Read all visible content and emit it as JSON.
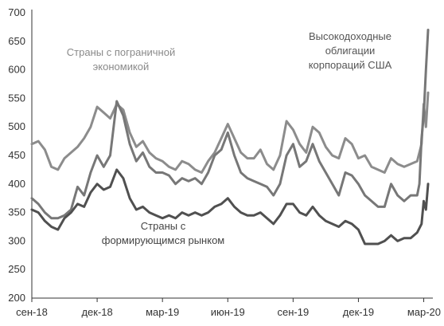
{
  "chart_data": {
    "type": "line",
    "title": "",
    "xlabel": "",
    "ylabel": "",
    "ylim": [
      200,
      700
    ],
    "yticks": [
      200,
      250,
      300,
      350,
      400,
      450,
      500,
      550,
      600,
      650,
      700
    ],
    "xlim": [
      0,
      18.2
    ],
    "xticks": [
      {
        "label": "сен-18",
        "x": 0
      },
      {
        "label": "дек-18",
        "x": 3
      },
      {
        "label": "мар-19",
        "x": 6
      },
      {
        "label": "июн-19",
        "x": 9
      },
      {
        "label": "сен-19",
        "x": 12
      },
      {
        "label": "дек-19",
        "x": 15
      },
      {
        "label": "мар-20",
        "x": 18
      }
    ],
    "grid": false,
    "legend": "none",
    "annotations": [
      {
        "lines": [
          "Страны с пограничной",
          "экономикой"
        ],
        "color": "#8a8a8a",
        "series": 0
      },
      {
        "lines": [
          "Высокодоходные",
          "облигации",
          "корпораций США"
        ],
        "color": "#555555",
        "series": 1
      },
      {
        "lines": [
          "Страны с",
          "формирующимся рынком"
        ],
        "color": "#444444",
        "series": 2
      }
    ],
    "series": [
      {
        "color": "#8c8c8c",
        "x": [
          0,
          0.3,
          0.6,
          0.9,
          1.2,
          1.5,
          1.8,
          2.1,
          2.4,
          2.7,
          3.0,
          3.3,
          3.6,
          3.9,
          4.2,
          4.5,
          4.8,
          5.1,
          5.4,
          5.7,
          6.0,
          6.3,
          6.6,
          6.9,
          7.2,
          7.5,
          7.8,
          8.1,
          8.4,
          8.7,
          9.0,
          9.3,
          9.6,
          9.9,
          10.2,
          10.5,
          10.8,
          11.1,
          11.4,
          11.7,
          12.0,
          12.3,
          12.6,
          12.9,
          13.2,
          13.5,
          13.8,
          14.1,
          14.4,
          14.7,
          15.0,
          15.3,
          15.6,
          15.9,
          16.2,
          16.5,
          16.8,
          17.1,
          17.4,
          17.7,
          17.9,
          18.0,
          18.1,
          18.2
        ],
        "values": [
          470,
          475,
          460,
          430,
          425,
          445,
          455,
          465,
          480,
          500,
          535,
          525,
          515,
          540,
          530,
          490,
          465,
          475,
          455,
          445,
          440,
          430,
          425,
          440,
          435,
          425,
          420,
          440,
          455,
          480,
          505,
          480,
          455,
          445,
          445,
          460,
          435,
          425,
          450,
          510,
          495,
          470,
          455,
          500,
          490,
          465,
          450,
          445,
          480,
          470,
          445,
          450,
          430,
          425,
          420,
          445,
          435,
          430,
          435,
          440,
          470,
          540,
          500,
          560
        ]
      },
      {
        "color": "#777777",
        "x": [
          0,
          0.3,
          0.6,
          0.9,
          1.2,
          1.5,
          1.8,
          2.1,
          2.4,
          2.7,
          3.0,
          3.3,
          3.6,
          3.9,
          4.2,
          4.5,
          4.8,
          5.1,
          5.4,
          5.7,
          6.0,
          6.3,
          6.6,
          6.9,
          7.2,
          7.5,
          7.8,
          8.1,
          8.4,
          8.7,
          9.0,
          9.3,
          9.6,
          9.9,
          10.2,
          10.5,
          10.8,
          11.1,
          11.4,
          11.7,
          12.0,
          12.3,
          12.6,
          12.9,
          13.2,
          13.5,
          13.8,
          14.1,
          14.4,
          14.7,
          15.0,
          15.3,
          15.6,
          15.9,
          16.2,
          16.5,
          16.8,
          17.1,
          17.4,
          17.7,
          17.8,
          17.9,
          18.0,
          18.1,
          18.2
        ],
        "values": [
          375,
          365,
          350,
          340,
          340,
          345,
          355,
          395,
          380,
          420,
          450,
          430,
          450,
          545,
          520,
          470,
          440,
          455,
          430,
          420,
          420,
          415,
          400,
          410,
          405,
          410,
          400,
          420,
          450,
          460,
          490,
          450,
          420,
          410,
          405,
          400,
          395,
          380,
          400,
          450,
          470,
          430,
          440,
          470,
          440,
          420,
          400,
          380,
          420,
          415,
          400,
          380,
          370,
          360,
          360,
          400,
          380,
          370,
          380,
          380,
          400,
          480,
          520,
          600,
          670
        ]
      },
      {
        "color": "#505050",
        "x": [
          0,
          0.3,
          0.6,
          0.9,
          1.2,
          1.5,
          1.8,
          2.1,
          2.4,
          2.7,
          3.0,
          3.3,
          3.6,
          3.9,
          4.2,
          4.5,
          4.8,
          5.1,
          5.4,
          5.7,
          6.0,
          6.3,
          6.6,
          6.9,
          7.2,
          7.5,
          7.8,
          8.1,
          8.4,
          8.7,
          9.0,
          9.3,
          9.6,
          9.9,
          10.2,
          10.5,
          10.8,
          11.1,
          11.4,
          11.7,
          12.0,
          12.3,
          12.6,
          12.9,
          13.2,
          13.5,
          13.8,
          14.1,
          14.4,
          14.7,
          15.0,
          15.3,
          15.6,
          15.9,
          16.2,
          16.5,
          16.8,
          17.1,
          17.4,
          17.7,
          17.9,
          18.0,
          18.1,
          18.2
        ],
        "values": [
          355,
          350,
          335,
          325,
          320,
          340,
          350,
          365,
          360,
          385,
          400,
          390,
          395,
          425,
          410,
          375,
          355,
          360,
          350,
          345,
          340,
          345,
          340,
          350,
          345,
          350,
          345,
          350,
          360,
          365,
          375,
          360,
          350,
          345,
          345,
          350,
          340,
          330,
          345,
          365,
          365,
          350,
          345,
          360,
          345,
          335,
          330,
          325,
          335,
          330,
          320,
          295,
          295,
          295,
          300,
          310,
          300,
          305,
          305,
          315,
          330,
          370,
          355,
          400
        ]
      }
    ]
  }
}
